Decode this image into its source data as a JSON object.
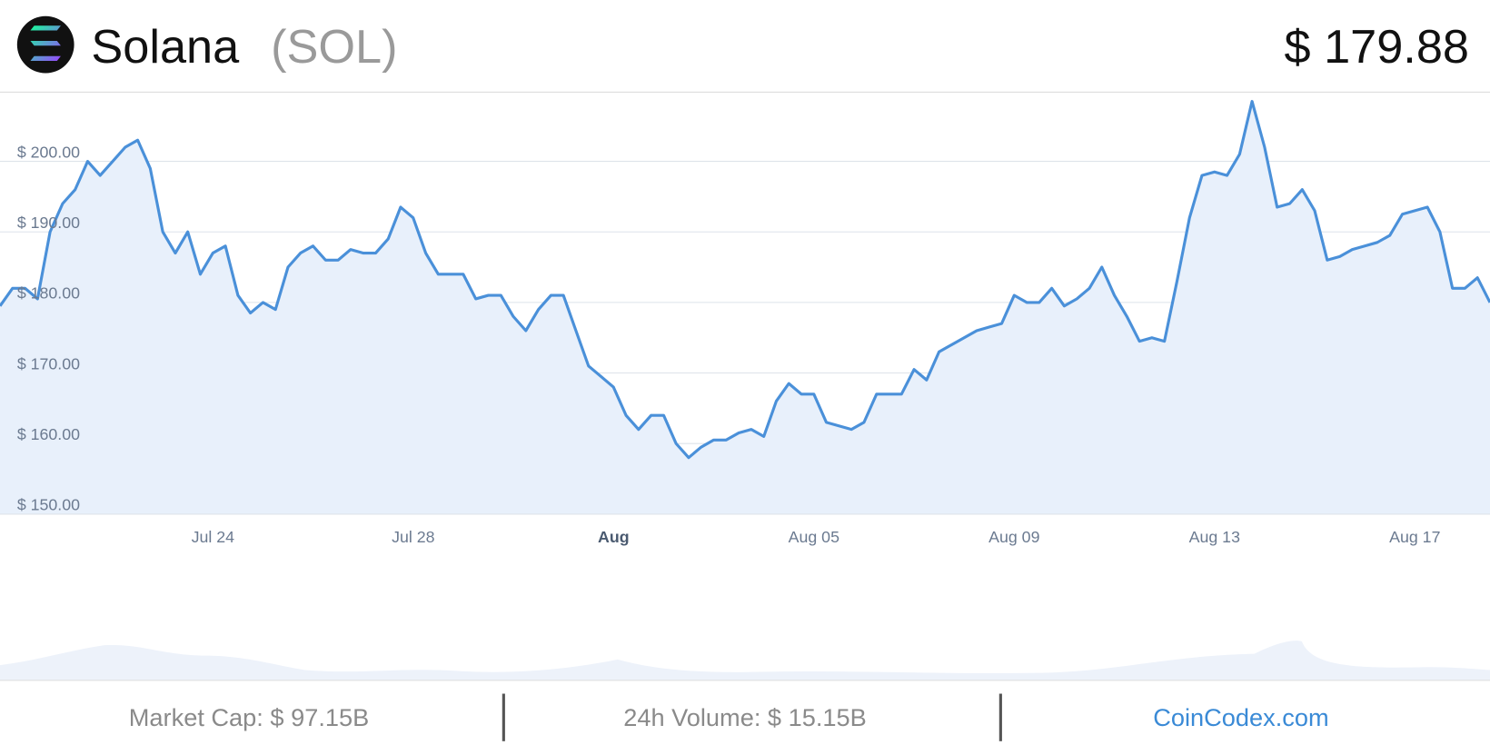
{
  "header": {
    "name": "Solana",
    "symbol": "(SOL)",
    "price": "$ 179.88"
  },
  "footer": {
    "market_cap": "Market Cap: $ 97.15B",
    "volume": "24h Volume: $ 15.15B",
    "source": "CoinCodex.com"
  },
  "chart_data": {
    "type": "line",
    "categories": [
      null,
      null,
      null,
      null,
      null,
      null,
      null,
      null,
      null,
      null,
      null,
      null,
      null,
      null,
      null,
      null,
      null,
      "Jul 24",
      null,
      null,
      null,
      null,
      null,
      null,
      null,
      null,
      null,
      null,
      null,
      null,
      null,
      null,
      null,
      "Jul 28",
      null,
      null,
      null,
      null,
      null,
      null,
      null,
      null,
      null,
      null,
      null,
      null,
      null,
      null,
      null,
      "Aug",
      null,
      null,
      null,
      null,
      null,
      null,
      null,
      null,
      null,
      null,
      null,
      null,
      null,
      null,
      null,
      "Aug 05",
      null,
      null,
      null,
      null,
      null,
      null,
      null,
      null,
      null,
      null,
      null,
      null,
      null,
      null,
      null,
      "Aug 09",
      null,
      null,
      null,
      null,
      null,
      null,
      null,
      null,
      null,
      null,
      null,
      null,
      null,
      null,
      null,
      "Aug 13",
      null,
      null,
      null,
      null,
      null,
      null,
      null,
      null,
      null,
      null,
      null,
      null,
      null,
      null,
      null,
      "Aug 17",
      null,
      null,
      null,
      null,
      null,
      null
    ],
    "series": [
      {
        "color": "#4a90d9",
        "values": [
          179.5,
          182,
          182,
          180.5,
          190,
          194,
          196,
          200,
          198,
          200,
          202,
          203,
          199,
          190,
          187,
          190,
          184,
          187,
          188,
          181,
          178.5,
          180,
          179,
          185,
          187,
          188,
          186,
          186,
          187.5,
          187,
          187,
          189,
          193.5,
          192,
          187,
          184,
          184,
          184,
          180.5,
          181,
          181,
          178,
          176,
          179,
          181,
          181,
          176,
          171,
          169.5,
          168,
          164,
          162,
          164,
          164,
          160,
          158,
          159.5,
          160.5,
          160.5,
          161.5,
          162,
          161,
          166,
          168.5,
          167,
          167,
          163,
          162.5,
          162,
          163,
          167,
          167,
          167,
          170.5,
          169,
          173,
          174,
          175,
          176,
          176.5,
          177,
          181,
          180,
          180,
          182,
          179.5,
          180.5,
          182,
          185,
          181,
          178,
          174.5,
          175,
          174.5,
          183,
          192,
          198,
          198.5,
          198,
          201,
          208.5,
          202,
          193.5,
          194,
          196,
          193,
          186,
          186.5,
          187.5,
          188,
          188.5,
          189.5,
          192.5,
          193,
          193.5,
          190,
          182,
          182,
          183.5,
          180
        ]
      }
    ],
    "fill": "#e8f0fb",
    "ylim": [
      150,
      209.8
    ],
    "yticks": [
      {
        "value": 150,
        "label": "$ 150.00"
      },
      {
        "value": 160,
        "label": "$ 160.00"
      },
      {
        "value": 170,
        "label": "$ 170.00"
      },
      {
        "value": 180,
        "label": "$ 180.00"
      },
      {
        "value": 190,
        "label": "$ 190.00"
      },
      {
        "value": 200,
        "label": "$ 200.00"
      }
    ],
    "grid": true
  }
}
